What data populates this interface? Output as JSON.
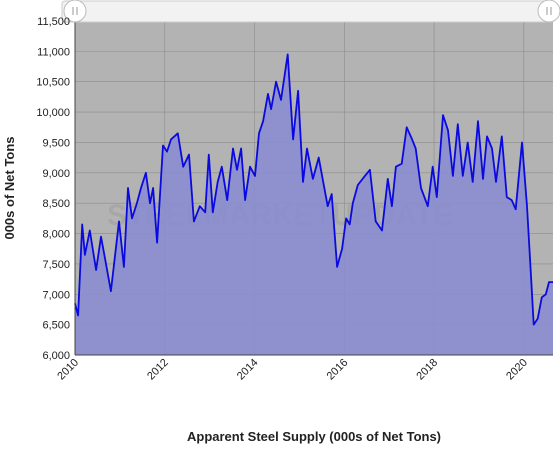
{
  "chart_data": {
    "type": "area",
    "x_label": "Apparent Steel Supply (000s of Net Tons)",
    "y_label": "000s of Net Tons",
    "watermark": "STEELMARKETUPDATE",
    "x": [
      2010.0,
      2010.07,
      2010.16,
      2010.22,
      2010.33,
      2010.47,
      2010.58,
      2010.69,
      2010.8,
      2010.98,
      2011.09,
      2011.18,
      2011.27,
      2011.38,
      2011.47,
      2011.58,
      2011.67,
      2011.74,
      2011.83,
      2011.96,
      2012.05,
      2012.14,
      2012.29,
      2012.41,
      2012.54,
      2012.65,
      2012.78,
      2012.9,
      2012.98,
      2013.07,
      2013.18,
      2013.27,
      2013.39,
      2013.52,
      2013.61,
      2013.7,
      2013.79,
      2013.9,
      2014.01,
      2014.1,
      2014.19,
      2014.3,
      2014.37,
      2014.48,
      2014.59,
      2014.74,
      2014.86,
      2014.97,
      2015.08,
      2015.17,
      2015.3,
      2015.43,
      2015.63,
      2015.72,
      2015.84,
      2015.95,
      2016.04,
      2016.12,
      2016.19,
      2016.3,
      2016.46,
      2016.57,
      2016.7,
      2016.84,
      2016.97,
      2017.06,
      2017.15,
      2017.28,
      2017.39,
      2017.51,
      2017.59,
      2017.71,
      2017.86,
      2017.97,
      2018.06,
      2018.2,
      2018.31,
      2018.42,
      2018.53,
      2018.64,
      2018.75,
      2018.86,
      2018.98,
      2019.09,
      2019.18,
      2019.29,
      2019.38,
      2019.51,
      2019.62,
      2019.73,
      2019.82,
      2019.96,
      2020.07,
      2020.16,
      2020.22,
      2020.31,
      2020.4,
      2020.49,
      2020.56,
      2020.65
    ],
    "series": [
      {
        "name": "Apparent Steel Supply",
        "color": "#0a0ae0",
        "fill": "#8a8dcf",
        "values": [
          6850,
          6650,
          8150,
          7650,
          8050,
          7400,
          7950,
          7500,
          7050,
          8200,
          7450,
          8750,
          8250,
          8500,
          8750,
          9000,
          8500,
          8750,
          7850,
          9450,
          9350,
          9550,
          9650,
          9100,
          9300,
          8200,
          8450,
          8350,
          9300,
          8350,
          8850,
          9100,
          8550,
          9400,
          9050,
          9400,
          8550,
          9100,
          8950,
          9650,
          9850,
          10300,
          10050,
          10500,
          10200,
          10950,
          9550,
          10350,
          8850,
          9400,
          8900,
          9250,
          8450,
          8650,
          7450,
          7750,
          8250,
          8150,
          8500,
          8800,
          8950,
          9050,
          8200,
          8050,
          8900,
          8450,
          9100,
          9150,
          9750,
          9550,
          9400,
          8750,
          8450,
          9100,
          8600,
          9950,
          9700,
          8950,
          9800,
          8950,
          9500,
          8850,
          9850,
          8900,
          9600,
          9400,
          8850,
          9600,
          8600,
          8550,
          8400,
          9500,
          8450,
          7300,
          6500,
          6600,
          6950,
          7000,
          7200,
          7200
        ]
      }
    ],
    "xlim": [
      2010,
      2020.65
    ],
    "xticks": [
      2010,
      2012,
      2014,
      2016,
      2018,
      2020
    ],
    "ylim": [
      6000,
      11500
    ],
    "yticks": [
      {
        "value": 6000,
        "label": "6,000"
      },
      {
        "value": 6500,
        "label": "6,500"
      },
      {
        "value": 7000,
        "label": "7,000"
      },
      {
        "value": 7500,
        "label": "7,500"
      },
      {
        "value": 8000,
        "label": "8,000"
      },
      {
        "value": 8500,
        "label": "8,500"
      },
      {
        "value": 9000,
        "label": "9,000"
      },
      {
        "value": 9500,
        "label": "9,500"
      },
      {
        "value": 10000,
        "label": "10,000"
      },
      {
        "value": 10500,
        "label": "10,500"
      },
      {
        "value": 11000,
        "label": "11,000"
      },
      {
        "value": 11500,
        "label": "11,500"
      }
    ],
    "grid": true
  }
}
